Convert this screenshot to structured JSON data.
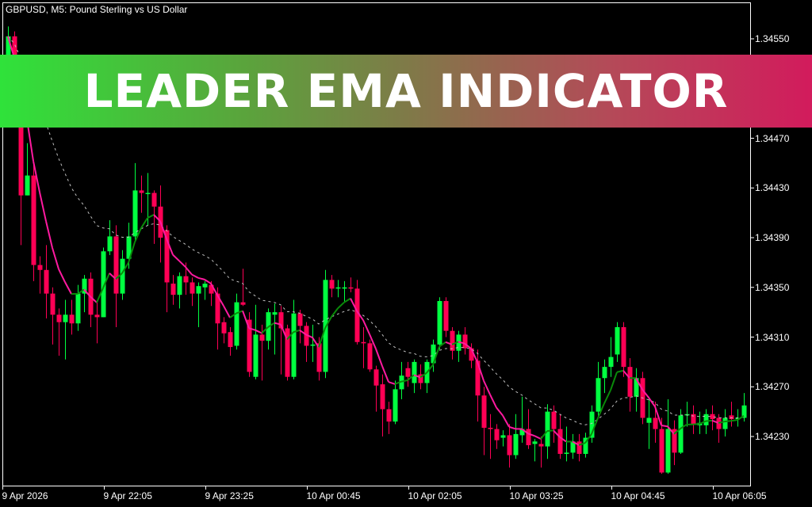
{
  "header": {
    "title": "GBPUSD, M5:  Pound Sterling vs US Dollar"
  },
  "banner": {
    "text": "LEADER EMA INDICATOR",
    "gradient_colors": [
      "#2fe23a",
      "#7f7a48",
      "#d21b5c"
    ]
  },
  "colors": {
    "background": "#000000",
    "bull": "#00ff40",
    "bear": "#ff0055",
    "ema_up": "#0a8a0a",
    "ema_down": "#ff1aa0",
    "slow_ema": "#c0c0c0",
    "axis": "#ffffff"
  },
  "chart_data": {
    "type": "candlestick",
    "symbol": "GBPUSD",
    "timeframe": "M5",
    "ylim": [
      1.3419,
      1.3458
    ],
    "y_ticks": [
      "1.34550",
      "1.34470",
      "1.34430",
      "1.34390",
      "1.34350",
      "1.34310",
      "1.34270",
      "1.34230"
    ],
    "x_ticks": [
      "9 Apr 2026",
      "9 Apr 22:05",
      "9 Apr 23:25",
      "10 Apr 00:45",
      "10 Apr 02:05",
      "10 Apr 03:25",
      "10 Apr 04:45",
      "10 Apr 06:05"
    ],
    "price_scale": 100000,
    "ohlc": [
      [
        134537,
        134560,
        134530,
        134552
      ],
      [
        134552,
        134556,
        134480,
        134492
      ],
      [
        134492,
        134500,
        134384,
        134424
      ],
      [
        134424,
        134466,
        134424,
        134440
      ],
      [
        134440,
        134450,
        134355,
        134368
      ],
      [
        134368,
        134375,
        134345,
        134364
      ],
      [
        134364,
        134384,
        134325,
        134345
      ],
      [
        134345,
        134350,
        134304,
        134328
      ],
      [
        134328,
        134333,
        134295,
        134322
      ],
      [
        134322,
        134340,
        134292,
        134328
      ],
      [
        134328,
        134340,
        134312,
        134321
      ],
      [
        134321,
        134352,
        134315,
        134345
      ],
      [
        134345,
        134360,
        134330,
        134357
      ],
      [
        134357,
        134362,
        134318,
        134328
      ],
      [
        134328,
        134338,
        134305,
        134326
      ],
      [
        134326,
        134382,
        134326,
        134379
      ],
      [
        134379,
        134404,
        134376,
        134391
      ],
      [
        134391,
        134400,
        134318,
        134345
      ],
      [
        134345,
        134380,
        134340,
        134373
      ],
      [
        134373,
        134402,
        134365,
        134391
      ],
      [
        134391,
        134450,
        134388,
        134428
      ],
      [
        134428,
        134440,
        134410,
        134426
      ],
      [
        134426,
        134442,
        134400,
        134426
      ],
      [
        134426,
        134428,
        134385,
        134415
      ],
      [
        134415,
        134432,
        134370,
        134390
      ],
      [
        134396,
        134400,
        134330,
        134354
      ],
      [
        134353,
        134360,
        134336,
        134344
      ],
      [
        134344,
        134362,
        134333,
        134359
      ],
      [
        134359,
        134370,
        134344,
        134354
      ],
      [
        134354,
        134358,
        134335,
        134345
      ],
      [
        134345,
        134354,
        134318,
        134351
      ],
      [
        134350,
        134355,
        134340,
        134353
      ],
      [
        134352,
        134355,
        134335,
        134345
      ],
      [
        134345,
        134350,
        134300,
        134321
      ],
      [
        134322,
        134326,
        134305,
        134313
      ],
      [
        134314,
        134318,
        134295,
        134302
      ],
      [
        134303,
        134345,
        134300,
        134338
      ],
      [
        134338,
        134365,
        134335,
        134336
      ],
      [
        134324,
        134330,
        134278,
        134282
      ],
      [
        134278,
        134336,
        134276,
        134312
      ],
      [
        134312,
        134320,
        134275,
        134307
      ],
      [
        134307,
        134333,
        134300,
        134330
      ],
      [
        134328,
        134337,
        134296,
        134330
      ],
      [
        134330,
        134335,
        134280,
        134317
      ],
      [
        134317,
        134320,
        134275,
        134278
      ],
      [
        134278,
        134340,
        134276,
        134329
      ],
      [
        134329,
        134332,
        134305,
        134319
      ],
      [
        134319,
        134322,
        134290,
        134303
      ],
      [
        134303,
        134320,
        134290,
        134304
      ],
      [
        134305,
        134310,
        134275,
        134282
      ],
      [
        134282,
        134364,
        134277,
        134356
      ],
      [
        134356,
        134360,
        134342,
        134349
      ],
      [
        134349,
        134356,
        134342,
        134350
      ],
      [
        134349,
        134355,
        134338,
        134350
      ],
      [
        134350,
        134358,
        134346,
        134349
      ],
      [
        134349,
        134356,
        134304,
        134306
      ],
      [
        134306,
        134318,
        134285,
        134305
      ],
      [
        134305,
        134308,
        134282,
        134284
      ],
      [
        134284,
        134287,
        134250,
        134271
      ],
      [
        134272,
        134280,
        134230,
        134252
      ],
      [
        134252,
        134258,
        134232,
        134242
      ],
      [
        134242,
        134275,
        134240,
        134268
      ],
      [
        134268,
        134290,
        134260,
        134279
      ],
      [
        134285,
        134290,
        134270,
        134278
      ],
      [
        134273,
        134292,
        134265,
        134290
      ],
      [
        134280,
        134288,
        134268,
        134273
      ],
      [
        134273,
        134292,
        134265,
        134290
      ],
      [
        134289,
        134308,
        134282,
        134304
      ],
      [
        134304,
        134342,
        134300,
        134339
      ],
      [
        134339,
        134342,
        134310,
        134315
      ],
      [
        134315,
        134318,
        134292,
        134299
      ],
      [
        134299,
        134315,
        134290,
        134312
      ],
      [
        134312,
        134318,
        134296,
        134301
      ],
      [
        134301,
        134305,
        134285,
        134291
      ],
      [
        134291,
        134300,
        134242,
        134263
      ],
      [
        134263,
        134270,
        134215,
        134237
      ],
      [
        134237,
        134248,
        134212,
        134236
      ],
      [
        134236,
        134240,
        134220,
        134227
      ],
      [
        134229,
        134235,
        134222,
        134231
      ],
      [
        134231,
        134240,
        134205,
        134215
      ],
      [
        134215,
        134248,
        134212,
        134232
      ],
      [
        134231,
        134262,
        134225,
        134236
      ],
      [
        134236,
        134252,
        134220,
        134223
      ],
      [
        134224,
        134228,
        134210,
        134226
      ],
      [
        134224,
        134230,
        134205,
        134222
      ],
      [
        134222,
        134256,
        134212,
        134250
      ],
      [
        134250,
        134255,
        134225,
        134236
      ],
      [
        134236,
        134248,
        134212,
        134216
      ],
      [
        134216,
        134238,
        134210,
        134217
      ],
      [
        134217,
        134232,
        134212,
        134226
      ],
      [
        134226,
        134232,
        134210,
        134216
      ],
      [
        134216,
        134233,
        134213,
        134229
      ],
      [
        134229,
        134255,
        134225,
        134250
      ],
      [
        134250,
        134290,
        134245,
        134277
      ],
      [
        134277,
        134292,
        134265,
        134286
      ],
      [
        134286,
        134310,
        134278,
        134294
      ],
      [
        134296,
        134322,
        134290,
        134318
      ],
      [
        134318,
        134322,
        134278,
        134286
      ],
      [
        134286,
        134293,
        134250,
        134262
      ],
      [
        134262,
        134285,
        134250,
        134277
      ],
      [
        134277,
        134282,
        134240,
        134245
      ],
      [
        134241,
        134262,
        134220,
        134245
      ],
      [
        134245,
        134258,
        134225,
        134236
      ],
      [
        134236,
        134245,
        134200,
        134201
      ],
      [
        134201,
        134260,
        134200,
        134236
      ],
      [
        134236,
        134243,
        134207,
        134217
      ],
      [
        134217,
        134252,
        134216,
        134247
      ],
      [
        134247,
        134258,
        134238,
        134248
      ],
      [
        134248,
        134255,
        134232,
        134240
      ],
      [
        134239,
        134250,
        134232,
        134241
      ],
      [
        134239,
        134252,
        134232,
        134248
      ],
      [
        134248,
        134255,
        134235,
        134244
      ],
      [
        134245,
        134248,
        134225,
        134236
      ],
      [
        134236,
        134252,
        134230,
        134245
      ],
      [
        134247,
        134258,
        134238,
        134244
      ],
      [
        134244,
        134252,
        134238,
        134245
      ],
      [
        134245,
        134265,
        134242,
        134255
      ]
    ]
  }
}
